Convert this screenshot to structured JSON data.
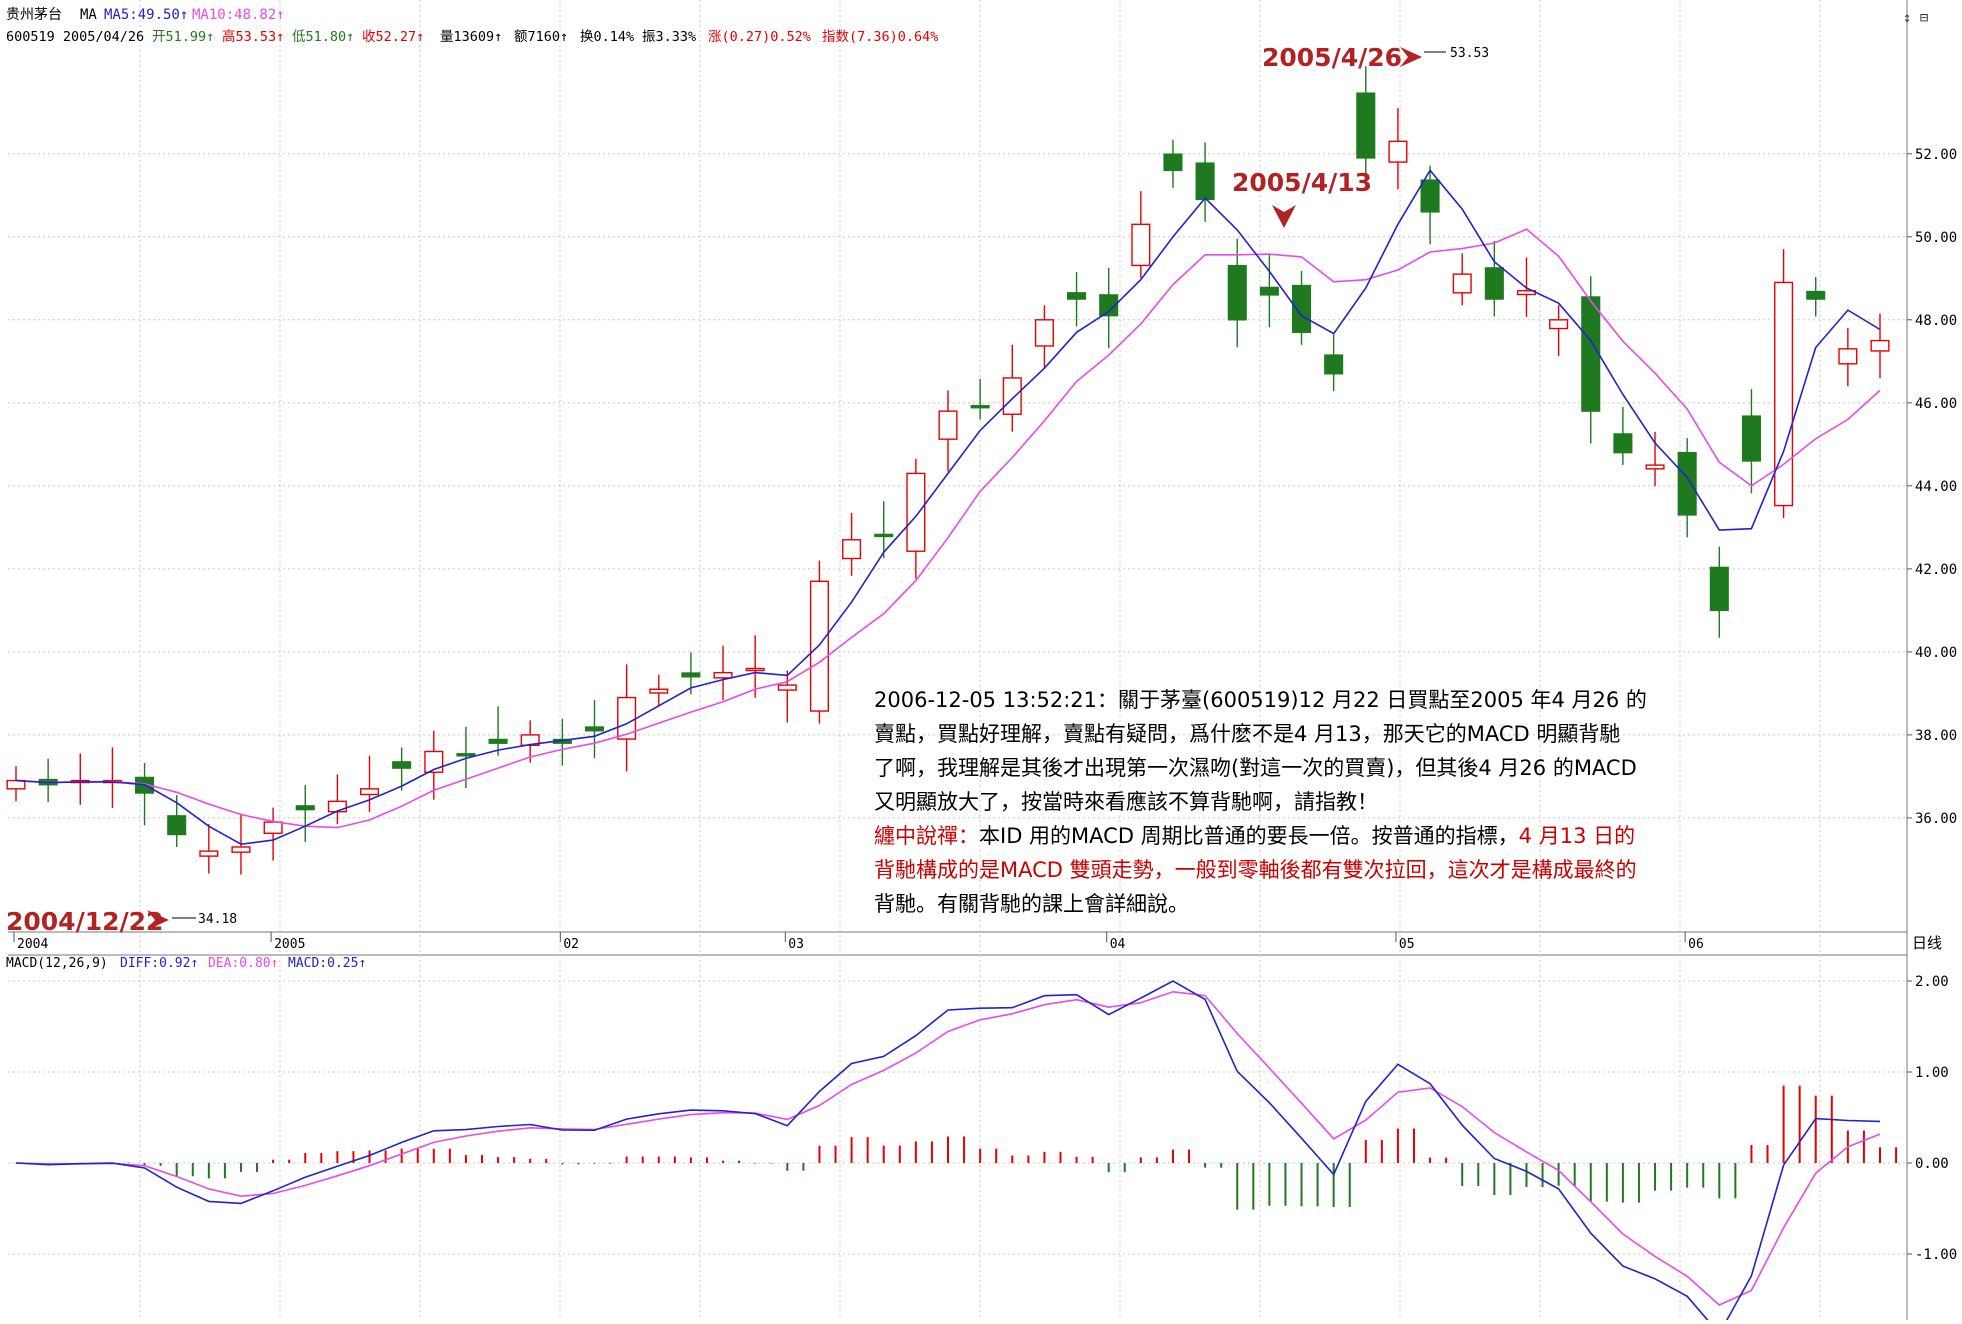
{
  "header": {
    "stock_name": "贵州茅台",
    "ma_label": "MA",
    "ma5": "MA5:49.50↑",
    "ma10": "MA10:48.82↑",
    "code_date": "600519 2005/04/26",
    "open": "开51.99↑",
    "high": "高53.53↑",
    "low": "低51.80↑",
    "close": "收52.27↑",
    "volume": "量13609↑",
    "amount": "额7160↑",
    "turnover": "换0.14%",
    "amplitude": "振3.33%",
    "change": "涨(0.27)0.52%",
    "index_change": "指数(7.36)0.64%"
  },
  "corner_icons": "↕ ⊟",
  "period_label": "日线",
  "macd_header": {
    "label": "MACD(12,26,9)",
    "diff": "DIFF:0.92↑",
    "dea": "DEA:0.80↑",
    "macd": "MACD:0.25↑"
  },
  "annotations": {
    "a1": "2005/4/26",
    "a2": "2005/4/13",
    "a3": "2004/12/22",
    "high_value": "53.53",
    "low_value": "34.18"
  },
  "note": {
    "line1": "2006-12-05 13:52:21：關于茅臺(600519)12 月22 日買點至2005 年4 月26 的",
    "line2": "賣點，買點好理解，賣點有疑問，爲什麽不是4 月13，那天它的MACD 明顯背馳",
    "line3": "了啊，我理解是其後才出現第一次濕吻(對這一次的買賣)，但其後4 月26 的MACD",
    "line4": "又明顯放大了，按當時來看應該不算背馳啊，請指教！",
    "line5_red": "纏中說禪：",
    "line5_black": "本ID 用的MACD 周期比普通的要長一倍。按普通的指標，",
    "line5_red2": "4 月13 日的",
    "line6_red": "背馳構成的是MACD 雙頭走勢，一般到零軸後都有雙次拉回，這次才是構成最終的",
    "line7": "背馳。有關背馳的課上會詳細說。"
  },
  "colors": {
    "up": "#e60000",
    "down": "#1f7a1f",
    "ma5": "#2222cc",
    "ma10": "#e64ce6",
    "grid": "#c8c8c8",
    "annotation": "#b22222"
  },
  "chart_data": [
    {
      "type": "candlestick",
      "price_axis": {
        "ylim": [
          33.3,
          54.5
        ],
        "ticks": [
          "52.00",
          "50.00",
          "48.00",
          "46.00",
          "44.00",
          "42.00",
          "40.00",
          "38.00",
          "36.00"
        ],
        "tick_values": [
          52,
          50,
          48,
          46,
          44,
          42,
          40,
          38,
          36
        ]
      },
      "x_labels": [
        {
          "label": "2004",
          "index": 0
        },
        {
          "label": "2005",
          "index": 8
        },
        {
          "label": "02",
          "index": 17
        },
        {
          "label": "03",
          "index": 24
        },
        {
          "label": "04",
          "index": 34
        },
        {
          "label": "05",
          "index": 43
        },
        {
          "label": "06",
          "index": 52
        }
      ],
      "candles_close": [
        36.9,
        36.8,
        36.9,
        36.9,
        36.6,
        35.6,
        35.2,
        35.3,
        35.9,
        36.2,
        36.4,
        36.7,
        37.2,
        37.6,
        37.5,
        37.8,
        38.0,
        37.8,
        38.1,
        38.9,
        39.1,
        39.4,
        39.5,
        39.6,
        39.2,
        41.7,
        42.7,
        42.8,
        44.3,
        45.8,
        45.9,
        46.6,
        48.0,
        48.5,
        48.1,
        50.3,
        51.6,
        50.9,
        48.0,
        48.6,
        47.7,
        46.7,
        51.9,
        52.3,
        50.6,
        49.1,
        48.5,
        48.7,
        48.0,
        45.8,
        44.8,
        44.5,
        43.3,
        41.0,
        44.6,
        48.9,
        48.5,
        47.3,
        47.5
      ]
    }
  ],
  "macd_axis": {
    "ticks": [
      "2.00",
      "1.00",
      "0.00",
      "-1.00"
    ],
    "tick_values": [
      2,
      1,
      0,
      -1
    ]
  }
}
